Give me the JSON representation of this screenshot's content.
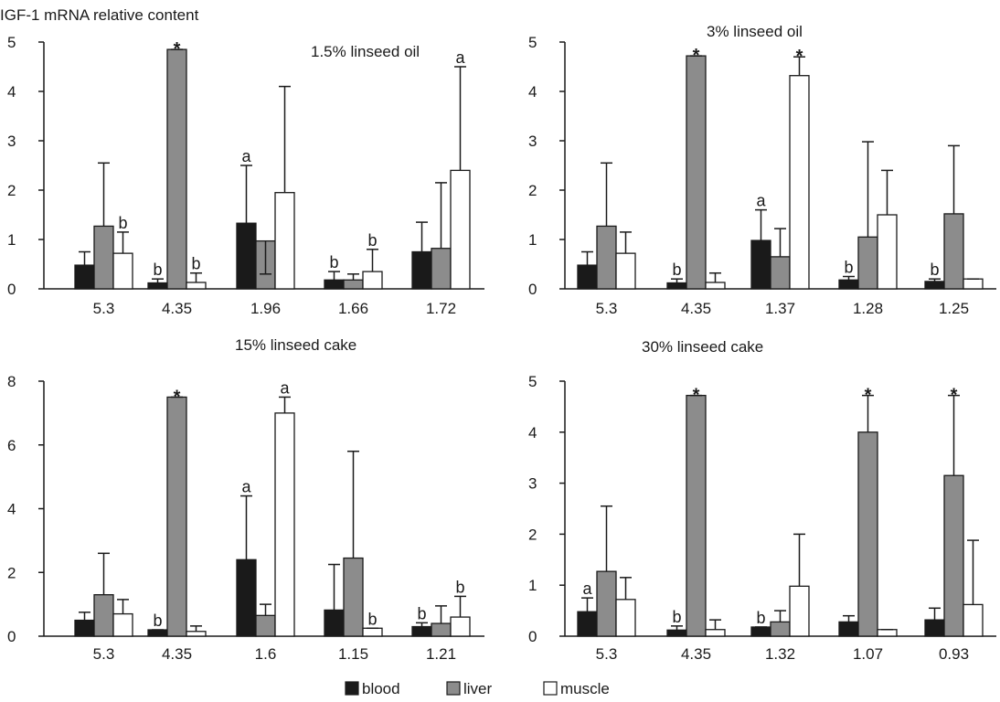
{
  "figure": {
    "ylabel": "IGF-1 mRNA relative content",
    "legend": [
      {
        "name": "blood",
        "color": "#1a1a1a"
      },
      {
        "name": "liver",
        "color": "#8c8c8c"
      },
      {
        "name": "muscle",
        "color": "#ffffff"
      }
    ]
  },
  "chart_data": [
    {
      "type": "bar",
      "title": "1.5% linseed oil",
      "ylim": [
        0,
        5
      ],
      "yticks": [
        0,
        1,
        2,
        3,
        4,
        5
      ],
      "categories": [
        "5.3",
        "4.35",
        "1.96",
        "1.66",
        "1.72"
      ],
      "series": [
        {
          "name": "blood",
          "values": [
            0.48,
            0.12,
            1.33,
            0.18,
            0.75
          ],
          "errors": [
            0.75,
            0.2,
            2.5,
            0.35,
            1.35
          ],
          "labels": [
            "",
            "b",
            "a",
            "b",
            ""
          ]
        },
        {
          "name": "liver",
          "values": [
            1.27,
            4.85,
            0.97,
            0.18,
            0.82
          ],
          "errors": [
            2.55,
            4.85,
            0.3,
            0.3,
            2.15
          ],
          "labels": [
            "",
            "*",
            "",
            "",
            ""
          ]
        },
        {
          "name": "muscle",
          "values": [
            0.72,
            0.13,
            1.95,
            0.35,
            2.4
          ],
          "errors": [
            1.15,
            0.32,
            4.1,
            0.8,
            4.5
          ],
          "labels": [
            "b",
            "b",
            "",
            "b",
            "a"
          ]
        }
      ]
    },
    {
      "type": "bar",
      "title": "3% linseed oil",
      "ylim": [
        0,
        5
      ],
      "yticks": [
        0,
        1,
        2,
        3,
        4,
        5
      ],
      "categories": [
        "5.3",
        "4.35",
        "1.37",
        "1.28",
        "1.25"
      ],
      "series": [
        {
          "name": "blood",
          "values": [
            0.48,
            0.12,
            0.98,
            0.18,
            0.15
          ],
          "errors": [
            0.75,
            0.2,
            1.6,
            0.25,
            0.2
          ],
          "labels": [
            "",
            "b",
            "a",
            "b",
            "b"
          ]
        },
        {
          "name": "liver",
          "values": [
            1.27,
            4.72,
            0.65,
            1.05,
            1.52
          ],
          "errors": [
            2.55,
            4.72,
            1.22,
            2.98,
            2.9
          ],
          "labels": [
            "",
            "*",
            "",
            "",
            ""
          ]
        },
        {
          "name": "muscle",
          "values": [
            0.72,
            0.13,
            4.32,
            1.5,
            0.2
          ],
          "errors": [
            1.15,
            0.32,
            4.7,
            2.4,
            0.2
          ],
          "labels": [
            "",
            "",
            "*",
            "",
            ""
          ]
        }
      ]
    },
    {
      "type": "bar",
      "title": "15% linseed cake",
      "ylim": [
        0,
        8
      ],
      "yticks": [
        0,
        2,
        4,
        6,
        8
      ],
      "categories": [
        "5.3",
        "4.35",
        "1.6",
        "1.15",
        "1.21"
      ],
      "series": [
        {
          "name": "blood",
          "values": [
            0.5,
            0.2,
            2.4,
            0.82,
            0.3
          ],
          "errors": [
            0.75,
            0.2,
            4.4,
            2.25,
            0.42
          ],
          "labels": [
            "",
            "b",
            "a",
            "",
            "b"
          ]
        },
        {
          "name": "liver",
          "values": [
            1.3,
            7.5,
            0.65,
            2.45,
            0.4
          ],
          "errors": [
            2.6,
            7.5,
            1.0,
            5.8,
            0.95
          ],
          "labels": [
            "",
            "*",
            "",
            "",
            ""
          ]
        },
        {
          "name": "muscle",
          "values": [
            0.7,
            0.15,
            7.0,
            0.25,
            0.6
          ],
          "errors": [
            1.15,
            0.32,
            7.5,
            0.25,
            1.25
          ],
          "labels": [
            "",
            "",
            "a",
            "b",
            "b"
          ]
        }
      ]
    },
    {
      "type": "bar",
      "title": "30% linseed cake",
      "ylim": [
        0,
        5
      ],
      "yticks": [
        0,
        1,
        2,
        3,
        4,
        5
      ],
      "categories": [
        "5.3",
        "4.35",
        "1.32",
        "1.07",
        "0.93"
      ],
      "series": [
        {
          "name": "blood",
          "values": [
            0.48,
            0.12,
            0.18,
            0.28,
            0.32
          ],
          "errors": [
            0.75,
            0.2,
            0.18,
            0.4,
            0.55
          ],
          "labels": [
            "a",
            "b",
            "b",
            "",
            ""
          ]
        },
        {
          "name": "liver",
          "values": [
            1.27,
            4.72,
            0.28,
            4.0,
            3.15
          ],
          "errors": [
            2.55,
            4.72,
            0.5,
            4.72,
            4.72
          ],
          "labels": [
            "",
            "*",
            "",
            "*",
            "*"
          ]
        },
        {
          "name": "muscle",
          "values": [
            0.72,
            0.13,
            0.98,
            0.13,
            0.62
          ],
          "errors": [
            1.15,
            0.32,
            2.0,
            0.13,
            1.88
          ],
          "labels": [
            "",
            "",
            "",
            "",
            ""
          ]
        }
      ]
    }
  ]
}
